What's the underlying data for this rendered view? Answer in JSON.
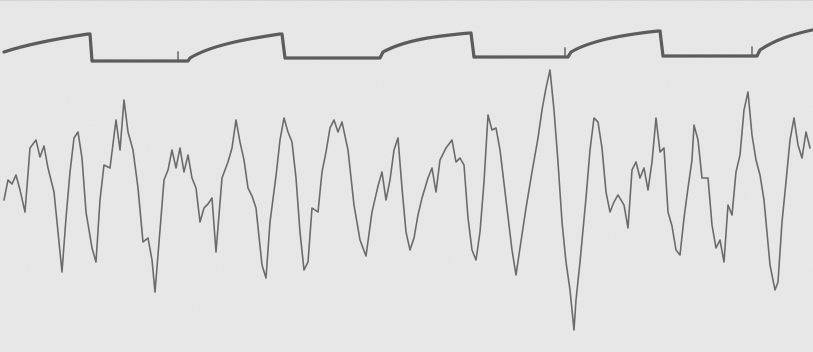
{
  "figure": {
    "kind": "oscillograph-recording",
    "paper_color": "#e9e9e9",
    "timer_trace_color": "#5c5c5c",
    "signal_trace_color": "#6a6a6a",
    "timer_segment_count": 5,
    "signal_trace_count": 1
  }
}
